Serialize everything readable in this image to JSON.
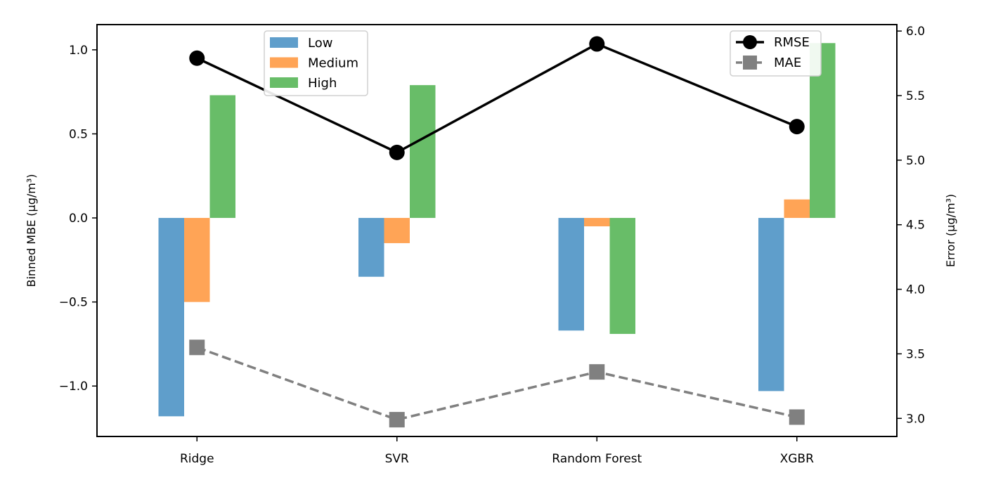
{
  "chart_data": {
    "type": "bar",
    "categories": [
      "Ridge",
      "SVR",
      "Random Forest",
      "XGBR"
    ],
    "bar_series": [
      {
        "name": "Low",
        "color": "#5f9ecb",
        "values": [
          -1.18,
          -0.35,
          -0.67,
          -1.03
        ]
      },
      {
        "name": "Medium",
        "color": "#ffa456",
        "values": [
          -0.5,
          -0.15,
          -0.05,
          0.11
        ]
      },
      {
        "name": "High",
        "color": "#68bd68",
        "values": [
          0.73,
          0.79,
          -0.69,
          1.04
        ]
      }
    ],
    "line_series": [
      {
        "name": "RMSE",
        "color": "#000000",
        "style": "solid",
        "marker": "circle",
        "values": [
          5.79,
          5.06,
          5.9,
          5.26
        ]
      },
      {
        "name": "MAE",
        "color": "#808080",
        "style": "dashed",
        "marker": "square",
        "values": [
          3.55,
          2.99,
          3.36,
          3.01
        ]
      }
    ],
    "ylabel": "Binned MBE (μg/m³)",
    "ylabel_right": "Error (μg/m³)",
    "ylim": [
      -1.3,
      1.15
    ],
    "ylim_right": [
      2.86,
      6.05
    ],
    "yticks": [
      "1.0",
      "0.5",
      "0.0",
      "−0.5",
      "−1.0"
    ],
    "yticks_right": [
      "6.0",
      "5.5",
      "5.0",
      "4.5",
      "4.0",
      "3.5",
      "3.0"
    ],
    "legend_bars_position": "upper-left",
    "legend_lines_position": "upper-right",
    "grid": false
  }
}
